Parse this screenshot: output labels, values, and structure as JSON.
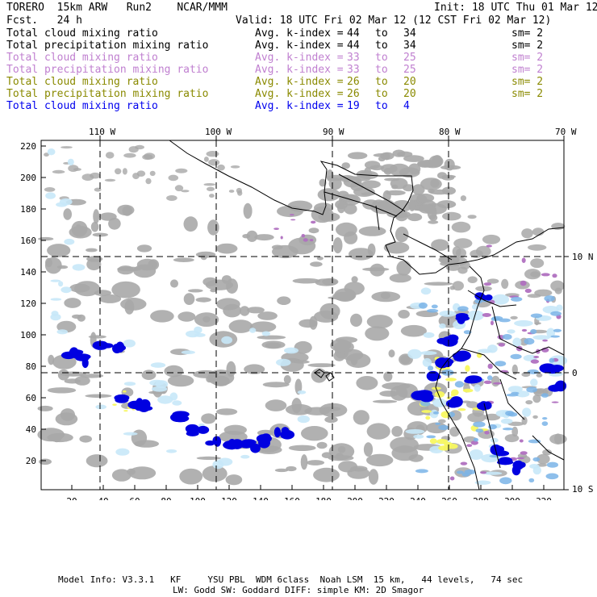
{
  "header": {
    "model": "TORERO  15km ARW   Run2    NCAR/MMM",
    "init": "Init: 18 UTC Thu 01 Mar 12",
    "fcst": "Fcst.   24 h",
    "valid": "Valid: 18 UTC Fri 02 Mar 12 (12 CST Fri 02 Mar 12)"
  },
  "legend": [
    {
      "field": "Total cloud mixing ratio",
      "avg": "Avg. k-index =",
      "k_from": "44",
      "to": "to",
      "k_to": "34",
      "sm": "sm= 2",
      "color": "#000000"
    },
    {
      "field": "Total precipitation mixing ratio",
      "avg": "Avg. k-index =",
      "k_from": "44",
      "to": "to",
      "k_to": "34",
      "sm": "sm= 2",
      "color": "#000000"
    },
    {
      "field": "Total cloud mixing ratio",
      "avg": "Avg. k-index =",
      "k_from": "33",
      "to": "to",
      "k_to": "25",
      "sm": "sm= 2",
      "color": "#c080d0"
    },
    {
      "field": "Total precipitation mixing ratio",
      "avg": "Avg. k-index =",
      "k_from": "33",
      "to": "to",
      "k_to": "25",
      "sm": "sm= 2",
      "color": "#c080d0"
    },
    {
      "field": "Total cloud mixing ratio",
      "avg": "Avg. k-index =",
      "k_from": "26",
      "to": "to",
      "k_to": "20",
      "sm": "sm= 2",
      "color": "#8a8a00"
    },
    {
      "field": "Total precipitation mixing ratio",
      "avg": "Avg. k-index =",
      "k_from": "26",
      "to": "to",
      "k_to": "20",
      "sm": "sm= 2",
      "color": "#8a8a00"
    },
    {
      "field": "Total cloud mixing ratio",
      "avg": "Avg. k-index =",
      "k_from": "19",
      "to": "to",
      "k_to": "4",
      "sm": "",
      "color": "#0000ee"
    }
  ],
  "map": {
    "lon_labels": [
      "110 W",
      "100 W",
      "90 W",
      "80 W",
      "70 W"
    ],
    "lat_labels": [
      "10 N",
      "0",
      "10 S"
    ],
    "y_grid_labels": [
      "220",
      "200",
      "180",
      "160",
      "140",
      "120",
      "100",
      "80",
      "60",
      "40",
      "20"
    ],
    "x_grid_labels": [
      "20",
      "40",
      "60",
      "80",
      "100",
      "120",
      "140",
      "160",
      "180",
      "200",
      "220",
      "240",
      "260",
      "280",
      "300",
      "320"
    ],
    "colors": {
      "cloud_gray": "#a8a8a8",
      "light_blue": "#c8e8f8",
      "mid_blue": "#7ab4e8",
      "blue": "#0000e0",
      "purple": "#b070c0",
      "yellow": "#f8f860"
    }
  },
  "footer": {
    "line1": "Model Info: V3.3.1   KF     YSU PBL  WDM 6class  Noah LSM  15 km,   44 levels,   74 sec",
    "line2": "LW: Godd SW: Goddard DIFF: simple KM: 2D Smagor"
  }
}
